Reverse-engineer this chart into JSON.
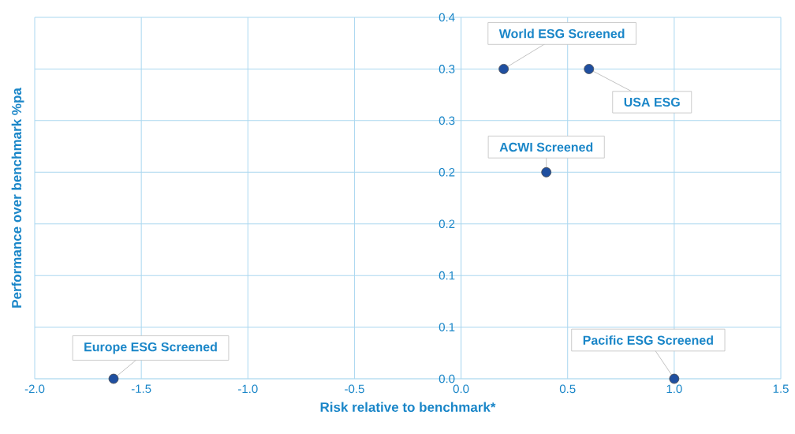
{
  "chart_data": {
    "type": "scatter",
    "xlabel": "Risk relative to benchmark*",
    "ylabel": "Performance over benchmark %pa",
    "series": [
      {
        "color": "#1f4fa0",
        "x": [
          -1.63,
          0.2,
          0.6,
          0.4,
          1.0
        ],
        "values": [
          0,
          0.3,
          0.3,
          0.2,
          0
        ]
      }
    ],
    "annotations": [
      {
        "text": "Europe ESG Screened",
        "x": -1.63,
        "y": 0
      },
      {
        "text": "World ESG Screened",
        "x": 0.2,
        "y": 0.3
      },
      {
        "text": "USA ESG",
        "x": 0.6,
        "y": 0.3
      },
      {
        "text": "ACWI Screened",
        "x": 0.4,
        "y": 0.2
      },
      {
        "text": "Pacific ESG Screened",
        "x": 1.0,
        "y": 0
      }
    ],
    "xlim": [
      -2,
      1.5
    ],
    "ylim": [
      0,
      0.35
    ],
    "xticks": [
      {
        "value": -2,
        "label": "-2.0"
      },
      {
        "value": -1.5,
        "label": "-1.5"
      },
      {
        "value": -1,
        "label": "-1.0"
      },
      {
        "value": -0.5,
        "label": "-0.5"
      },
      {
        "value": 0,
        "label": "0.0"
      },
      {
        "value": 0.5,
        "label": "0.5"
      },
      {
        "value": 1,
        "label": "1.0"
      },
      {
        "value": 1.5,
        "label": "1.5"
      }
    ],
    "yticks": [
      {
        "value": 0,
        "label": "0.0"
      },
      {
        "value": 0.05,
        "label": "0.1"
      },
      {
        "value": 0.1,
        "label": "0.1"
      },
      {
        "value": 0.15,
        "label": "0.2"
      },
      {
        "value": 0.2,
        "label": "0.2"
      },
      {
        "value": 0.25,
        "label": "0.3"
      },
      {
        "value": 0.3,
        "label": "0.3"
      },
      {
        "value": 0.35,
        "label": "0.4"
      }
    ],
    "grid": true,
    "marker": "circle"
  }
}
